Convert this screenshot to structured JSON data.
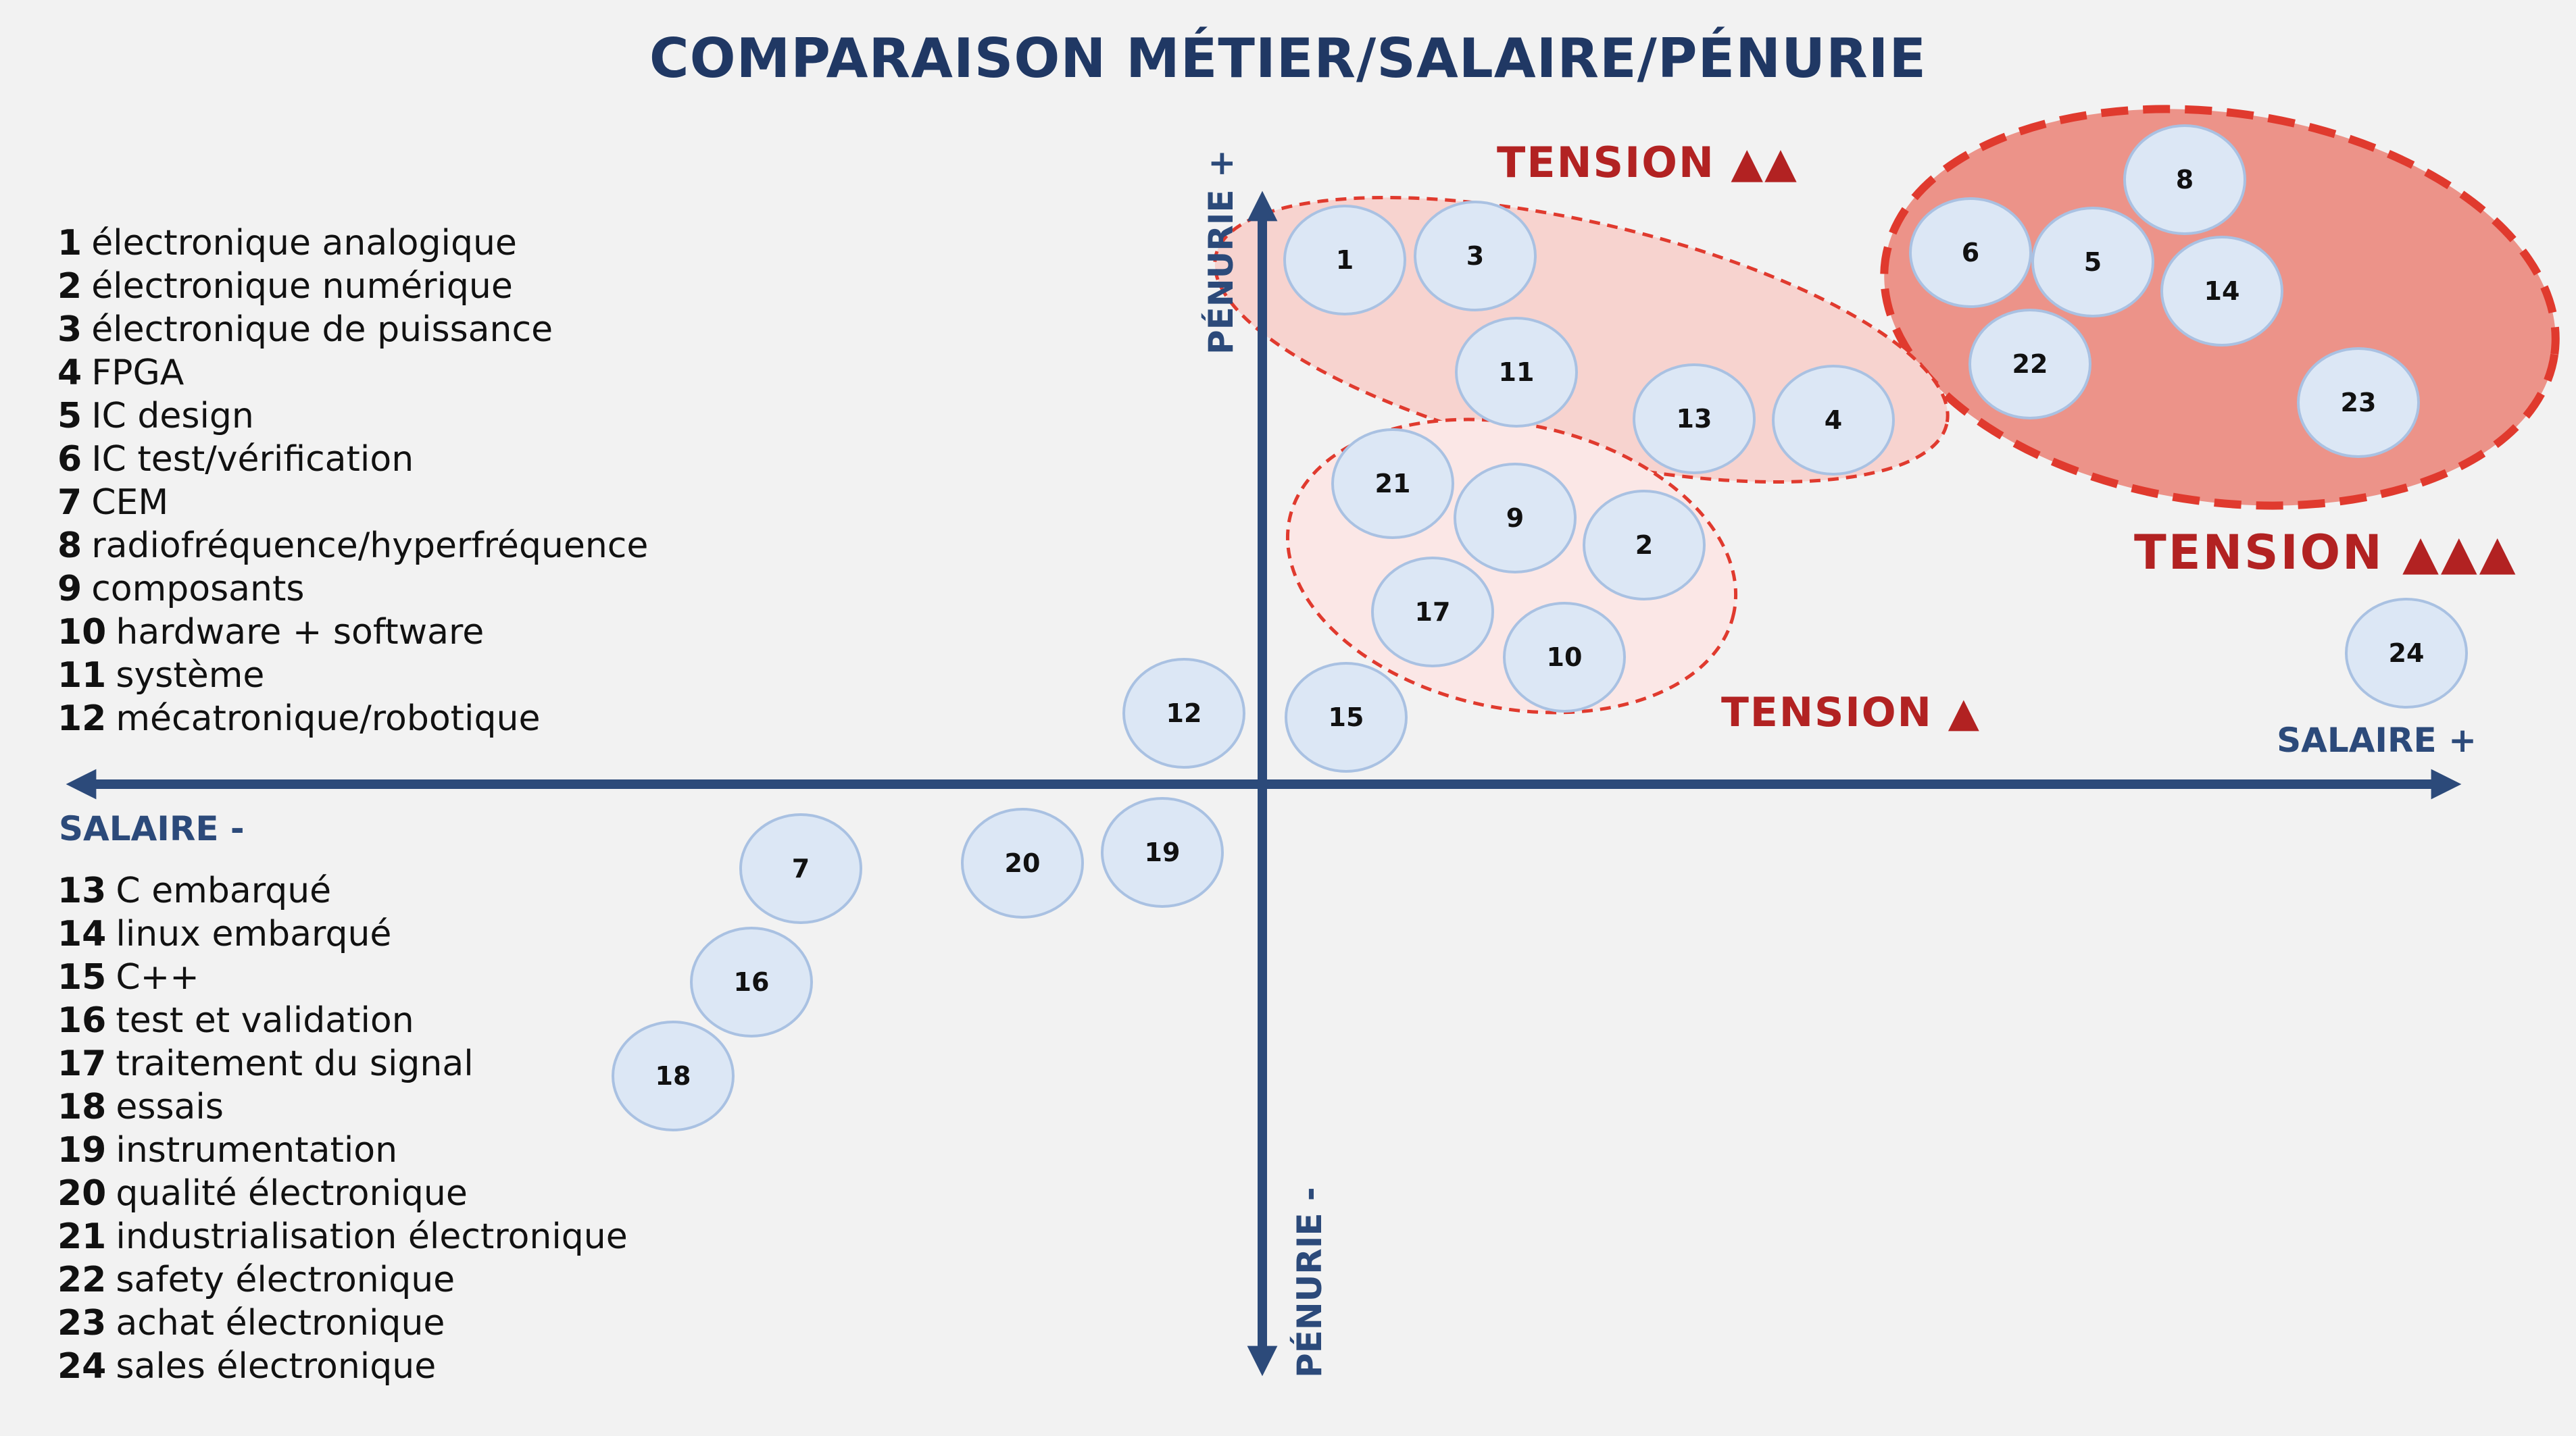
{
  "title": "COMPARAISON MÉTIER/SALAIRE/PÉNURIE",
  "axes": {
    "y_plus": "PÉNURIE +",
    "y_minus": "PÉNURIE -",
    "x_plus": "SALAIRE +",
    "x_minus": "SALAIRE -"
  },
  "zones": {
    "low": "TENSION ▲",
    "mid": "TENSION ▲▲",
    "high": "TENSION ▲▲▲"
  },
  "colors": {
    "axis": "#2c4a7a",
    "title": "#203864",
    "bubble_fill": "#dce7f5",
    "bubble_stroke": "#a9c1e2",
    "tension": "#b22222",
    "zone_high_fill": "#ec9389",
    "zone_mid_fill": "#f7d3cf",
    "zone_low_fill": "#fbe7e6"
  },
  "legend_top": [
    {
      "num": "1",
      "label": "électronique analogique"
    },
    {
      "num": "2",
      "label": "électronique numérique"
    },
    {
      "num": "3",
      "label": "électronique de puissance"
    },
    {
      "num": "4",
      "label": "FPGA"
    },
    {
      "num": "5",
      "label": "IC design"
    },
    {
      "num": "6",
      "label": "IC test/vérification"
    },
    {
      "num": "7",
      "label": "CEM"
    },
    {
      "num": "8",
      "label": "radiofréquence/hyperfréquence"
    },
    {
      "num": "9",
      "label": "composants"
    },
    {
      "num": "10",
      "label": "hardware + software"
    },
    {
      "num": "11",
      "label": "système"
    },
    {
      "num": "12",
      "label": "mécatronique/robotique"
    }
  ],
  "legend_bottom": [
    {
      "num": "13",
      "label": "C embarqué"
    },
    {
      "num": "14",
      "label": "linux embarqué"
    },
    {
      "num": "15",
      "label": "C++"
    },
    {
      "num": "16",
      "label": "test et validation"
    },
    {
      "num": "17",
      "label": "traitement du signal"
    },
    {
      "num": "18",
      "label": "essais"
    },
    {
      "num": "19",
      "label": "instrumentation"
    },
    {
      "num": "20",
      "label": "qualité électronique"
    },
    {
      "num": "21",
      "label": "industrialisation électronique"
    },
    {
      "num": "22",
      "label": "safety électronique"
    },
    {
      "num": "23",
      "label": "achat électronique"
    },
    {
      "num": "24",
      "label": "sales électronique"
    }
  ],
  "bubbles": [
    "1",
    "2",
    "3",
    "4",
    "5",
    "6",
    "7",
    "8",
    "9",
    "10",
    "11",
    "12",
    "13",
    "14",
    "15",
    "16",
    "17",
    "18",
    "19",
    "20",
    "21",
    "22",
    "23",
    "24"
  ]
}
